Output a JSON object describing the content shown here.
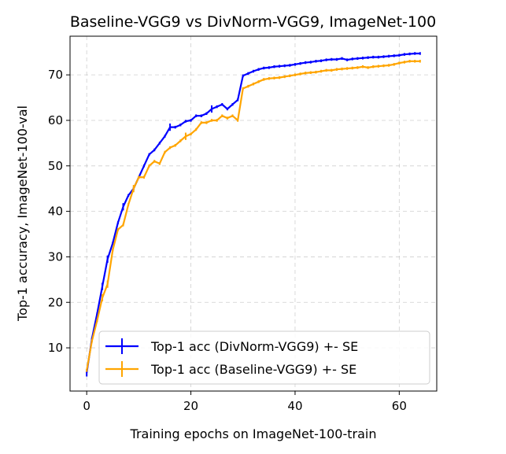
{
  "chart_data": {
    "type": "line",
    "title": "Baseline-VGG9 vs DivNorm-VGG9, ImageNet-100",
    "xlabel": "Training epochs on ImageNet-100-train",
    "ylabel": "Top-1 accuracy, ImageNet-100-val",
    "xlim": [
      -3.2,
      67.2
    ],
    "ylim": [
      0.5,
      78.5
    ],
    "xticks": [
      0,
      20,
      40,
      60
    ],
    "yticks": [
      10,
      20,
      30,
      40,
      50,
      60,
      70
    ],
    "grid": true,
    "legend_position": "lower-right",
    "x": [
      0,
      1,
      2,
      3,
      4,
      5,
      6,
      7,
      8,
      9,
      10,
      11,
      12,
      13,
      14,
      15,
      16,
      17,
      18,
      19,
      20,
      21,
      22,
      23,
      24,
      25,
      26,
      27,
      28,
      29,
      30,
      31,
      32,
      33,
      34,
      35,
      36,
      37,
      38,
      39,
      40,
      41,
      42,
      43,
      44,
      45,
      46,
      47,
      48,
      49,
      50,
      51,
      52,
      53,
      54,
      55,
      56,
      57,
      58,
      59,
      60,
      61,
      62,
      63,
      64
    ],
    "series": [
      {
        "name": "Top-1 acc (DivNorm-VGG9) +- SE",
        "color": "#0000ff",
        "values": [
          4.5,
          12.0,
          17.5,
          23.5,
          29.5,
          33.0,
          37.5,
          41.0,
          43.5,
          45.0,
          47.5,
          50.0,
          52.5,
          53.5,
          55.0,
          56.5,
          58.5,
          58.5,
          59.0,
          59.8,
          60.0,
          61.0,
          61.0,
          61.5,
          62.5,
          63.0,
          63.5,
          62.5,
          63.5,
          64.5,
          69.8,
          70.3,
          70.8,
          71.2,
          71.5,
          71.6,
          71.8,
          71.9,
          72.0,
          72.1,
          72.3,
          72.5,
          72.7,
          72.8,
          73.0,
          73.1,
          73.3,
          73.4,
          73.4,
          73.6,
          73.3,
          73.5,
          73.6,
          73.7,
          73.8,
          73.9,
          73.9,
          74.0,
          74.1,
          74.2,
          74.3,
          74.5,
          74.6,
          74.7,
          74.7
        ],
        "errors": [
          0.8,
          0.3,
          0.3,
          0.8,
          0.8,
          0.3,
          0.3,
          0.8,
          0.3,
          0.3,
          0.3,
          0.3,
          0.3,
          0.3,
          0.3,
          0.3,
          0.8,
          0.3,
          0.3,
          0.3,
          0.3,
          0.3,
          0.3,
          0.3,
          0.8,
          0.3,
          0.3,
          0.3,
          0.3,
          0.3,
          0.3,
          0.3,
          0.3,
          0.3,
          0.3,
          0.3,
          0.3,
          0.3,
          0.3,
          0.3,
          0.3,
          0.3,
          0.3,
          0.3,
          0.3,
          0.3,
          0.3,
          0.3,
          0.3,
          0.3,
          0.3,
          0.3,
          0.3,
          0.3,
          0.3,
          0.3,
          0.3,
          0.3,
          0.3,
          0.3,
          0.3,
          0.3,
          0.3,
          0.3,
          0.3
        ]
      },
      {
        "name": "Top-1 acc (Baseline-VGG9) +- SE",
        "color": "#ffa500",
        "values": [
          5.0,
          11.5,
          16.0,
          21.0,
          24.0,
          31.5,
          36.0,
          37.0,
          41.5,
          45.0,
          47.5,
          47.5,
          50.0,
          51.0,
          50.5,
          53.0,
          54.0,
          54.5,
          55.5,
          56.5,
          57.0,
          58.0,
          59.5,
          59.5,
          60.0,
          60.0,
          61.0,
          60.5,
          61.0,
          60.0,
          67.0,
          67.5,
          68.0,
          68.5,
          69.0,
          69.2,
          69.3,
          69.4,
          69.6,
          69.8,
          70.0,
          70.2,
          70.4,
          70.5,
          70.6,
          70.8,
          71.0,
          71.0,
          71.2,
          71.3,
          71.4,
          71.5,
          71.6,
          71.8,
          71.6,
          71.8,
          71.9,
          72.0,
          72.1,
          72.3,
          72.6,
          72.8,
          73.0,
          73.0,
          73.0
        ],
        "errors": [
          0.3,
          0.3,
          0.3,
          0.8,
          0.8,
          0.3,
          0.3,
          0.3,
          0.3,
          0.8,
          0.3,
          0.3,
          0.3,
          0.3,
          0.3,
          0.3,
          0.3,
          0.3,
          0.3,
          0.8,
          0.3,
          0.3,
          0.3,
          0.3,
          0.3,
          0.3,
          0.3,
          0.3,
          0.3,
          0.3,
          0.3,
          0.3,
          0.3,
          0.3,
          0.3,
          0.3,
          0.3,
          0.3,
          0.3,
          0.3,
          0.3,
          0.3,
          0.3,
          0.3,
          0.3,
          0.3,
          0.3,
          0.3,
          0.3,
          0.3,
          0.3,
          0.3,
          0.3,
          0.3,
          0.3,
          0.3,
          0.3,
          0.3,
          0.3,
          0.3,
          0.3,
          0.3,
          0.3,
          0.3,
          0.3
        ]
      }
    ]
  }
}
